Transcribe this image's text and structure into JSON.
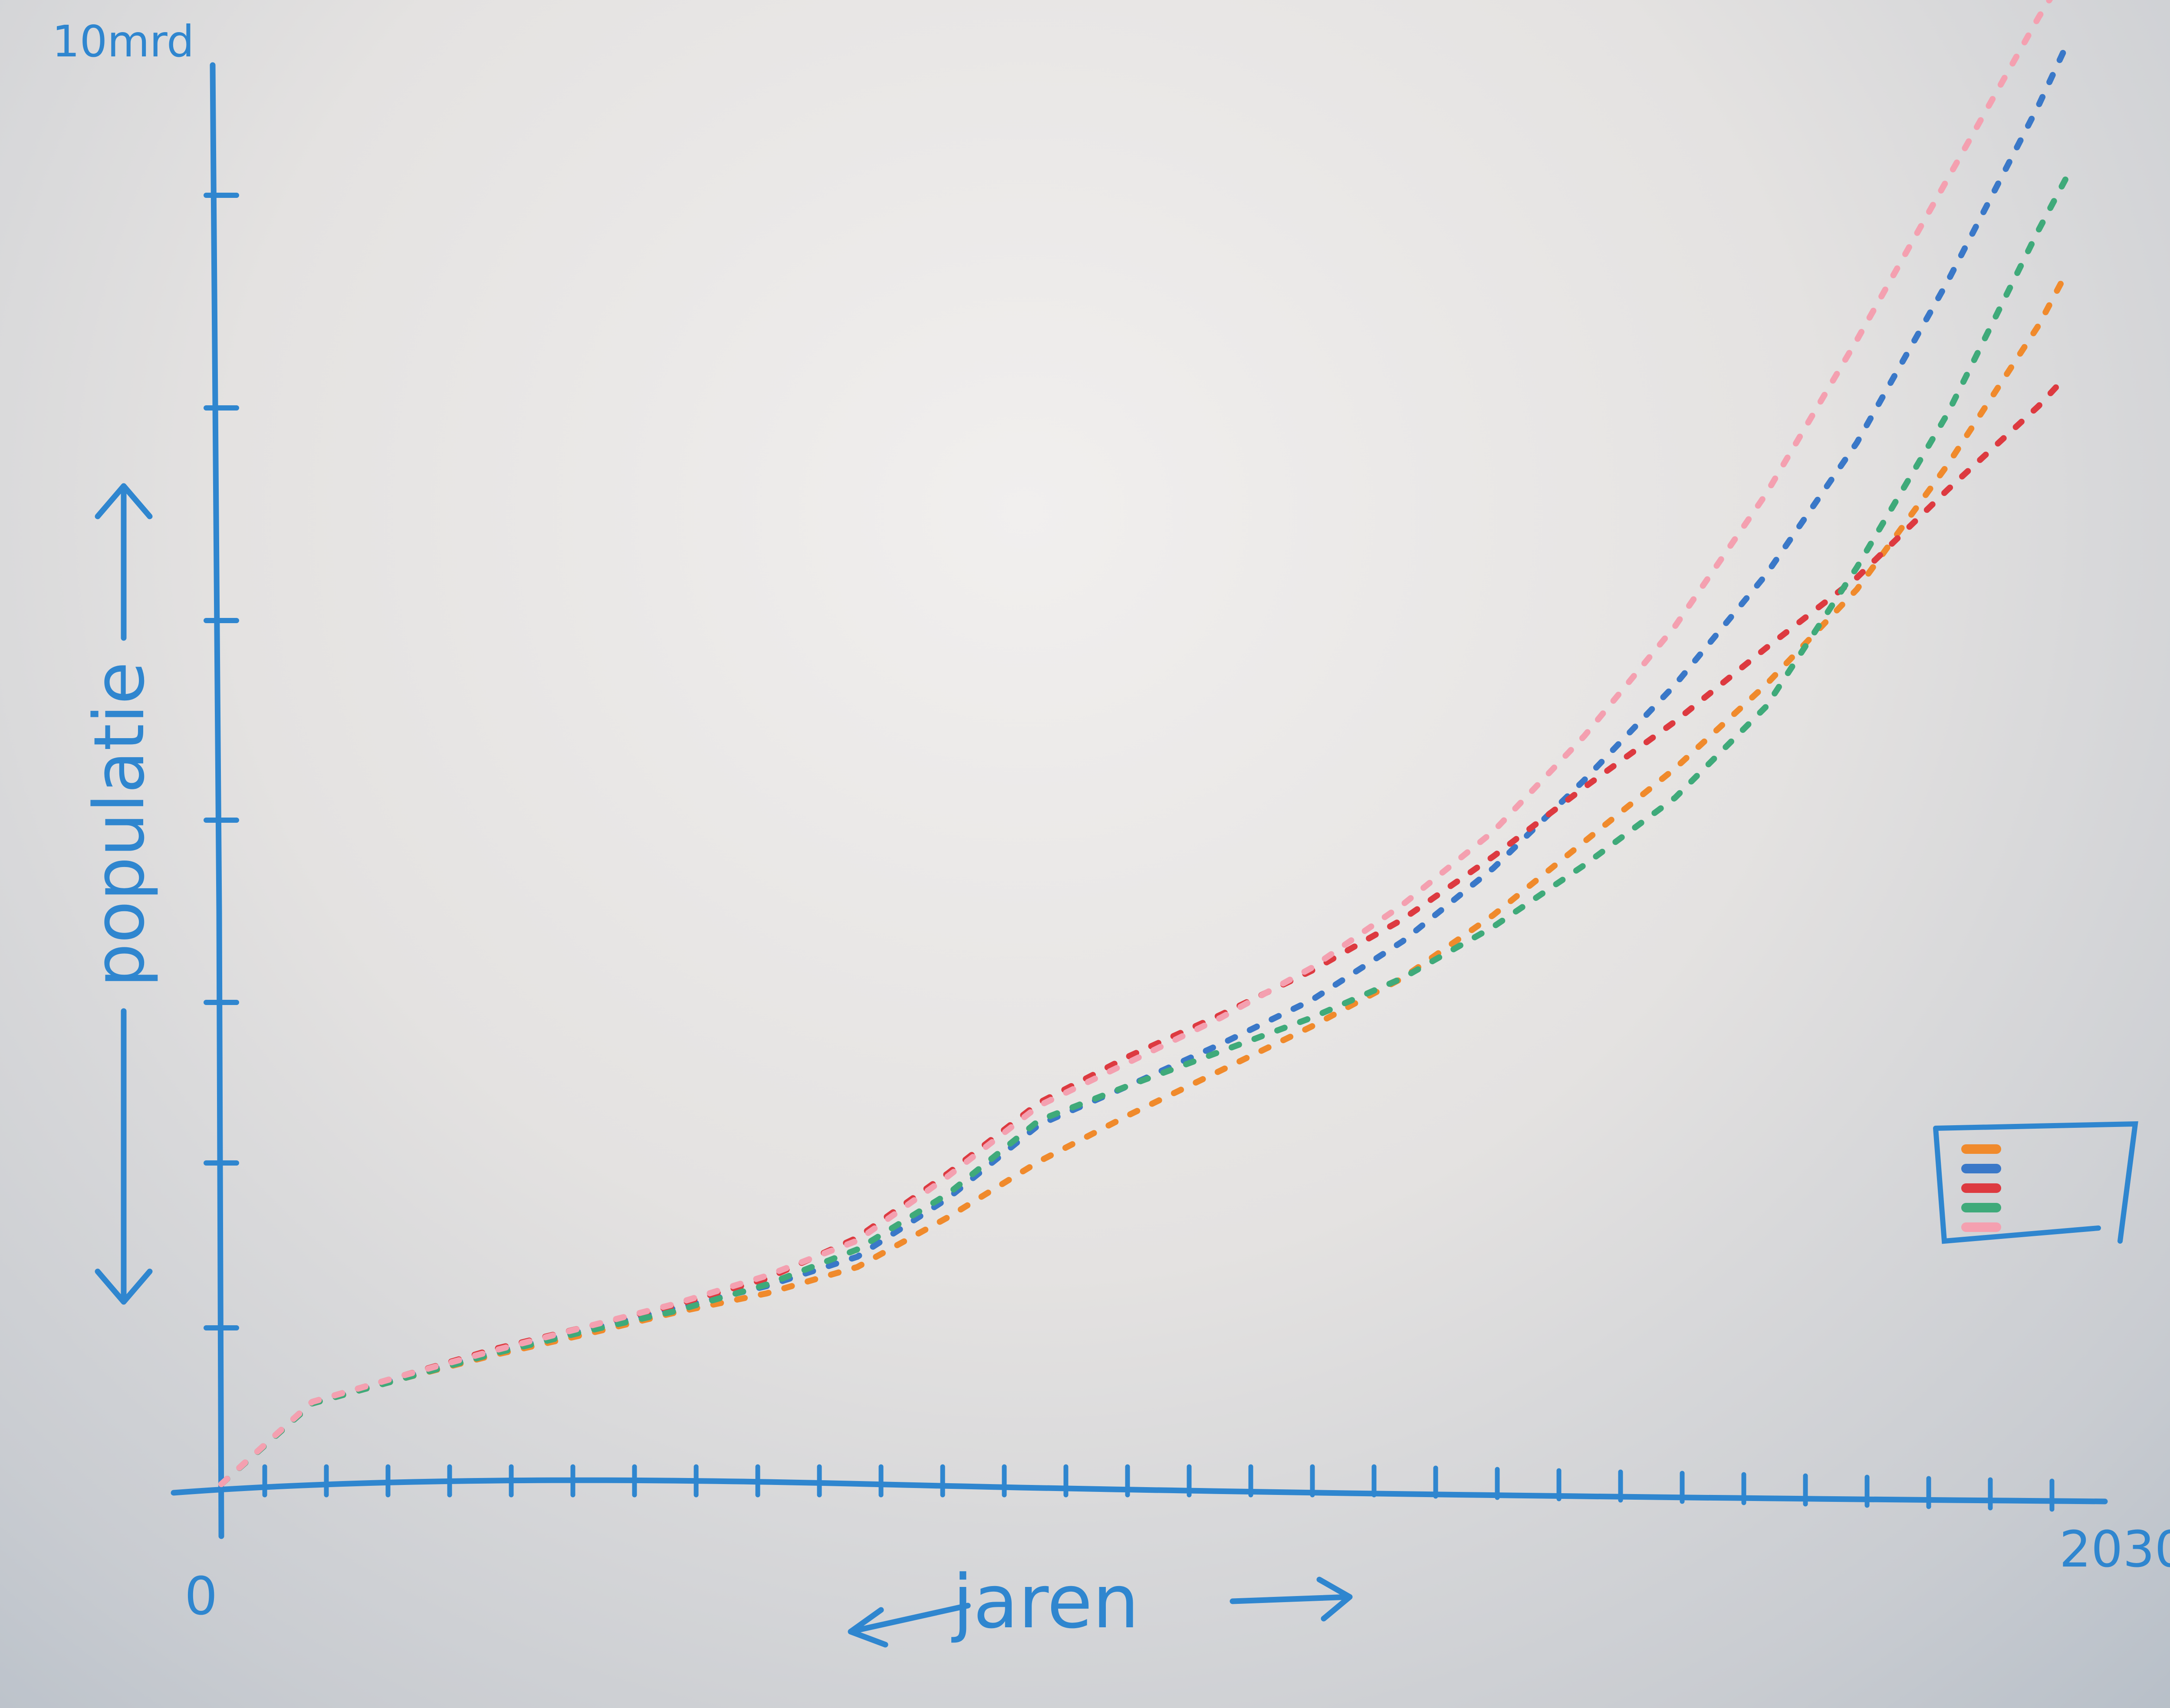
{
  "chart_data": {
    "type": "line",
    "title": "",
    "xlabel": "jaren",
    "ylabel": "populatie",
    "x_tick_labels": [
      "0",
      "2030"
    ],
    "y_tick_labels": [
      "10mrd"
    ],
    "xlim": [
      0,
      2030
    ],
    "ylim": [
      0,
      10
    ],
    "y_unit": "mrd",
    "grid": false,
    "legend": {
      "position": "right",
      "entries_visible_text": false
    },
    "line_style": "dotted",
    "colors": [
      "#f08a2c",
      "#3a78c8",
      "#dd3a40",
      "#3faa7a",
      "#f4a0b0"
    ],
    "x": [
      0,
      100,
      200,
      300,
      400,
      500,
      600,
      700,
      800,
      900,
      1000,
      1100,
      1200,
      1300,
      1400,
      1500,
      1600,
      1700,
      1800,
      1900,
      2000,
      2030
    ],
    "series": [
      {
        "values": [
          0.0,
          0.55,
          0.72,
          0.88,
          1.02,
          1.17,
          1.3,
          1.48,
          1.82,
          2.2,
          2.52,
          2.82,
          3.12,
          3.45,
          3.88,
          4.38,
          4.88,
          5.45,
          6.1,
          6.95,
          7.9,
          8.25
        ]
      },
      {
        "values": [
          0.0,
          0.55,
          0.73,
          0.9,
          1.05,
          1.2,
          1.35,
          1.55,
          1.95,
          2.45,
          2.72,
          3.0,
          3.3,
          3.7,
          4.2,
          4.8,
          5.45,
          6.2,
          7.1,
          8.2,
          9.4,
          9.8
        ]
      },
      {
        "values": [
          0.0,
          0.56,
          0.74,
          0.92,
          1.07,
          1.22,
          1.4,
          1.68,
          2.12,
          2.6,
          2.92,
          3.2,
          3.5,
          3.85,
          4.28,
          4.75,
          5.2,
          5.7,
          6.18,
          6.78,
          7.35,
          7.55
        ]
      },
      {
        "values": [
          0.0,
          0.55,
          0.72,
          0.89,
          1.04,
          1.18,
          1.36,
          1.6,
          1.98,
          2.48,
          2.72,
          2.95,
          3.18,
          3.45,
          3.8,
          4.22,
          4.68,
          5.3,
          6.25,
          7.3,
          8.55,
          8.9
        ]
      },
      {
        "values": [
          0.0,
          0.56,
          0.74,
          0.91,
          1.07,
          1.23,
          1.42,
          1.66,
          2.1,
          2.58,
          2.88,
          3.18,
          3.52,
          3.95,
          4.45,
          5.1,
          5.85,
          6.75,
          7.8,
          8.9,
          10.0,
          10.3
        ]
      }
    ]
  }
}
